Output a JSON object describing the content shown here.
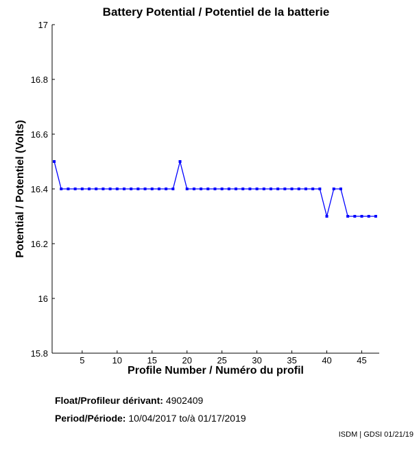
{
  "chart_data": {
    "type": "line",
    "title": "Battery Potential / Potentiel de la batterie",
    "xlabel": "Profile Number / Numéro du profil",
    "ylabel": "Potential / Potentiel (Volts)",
    "xlim": [
      0.7,
      47.5
    ],
    "ylim": [
      15.8,
      17
    ],
    "xticks": [
      5,
      10,
      15,
      20,
      25,
      30,
      35,
      40,
      45
    ],
    "yticks": [
      15.8,
      16,
      16.2,
      16.4,
      16.6,
      16.8,
      17
    ],
    "ytick_labels": [
      "15.8",
      "16",
      "16.2",
      "16.4",
      "16.6",
      "16.8",
      "17"
    ],
    "grid": false,
    "color": "#0000ff",
    "marker": "square",
    "x": [
      1,
      2,
      3,
      4,
      5,
      6,
      7,
      8,
      9,
      10,
      11,
      12,
      13,
      14,
      15,
      16,
      17,
      18,
      19,
      20,
      21,
      22,
      23,
      24,
      25,
      26,
      27,
      28,
      29,
      30,
      31,
      32,
      33,
      34,
      35,
      36,
      37,
      38,
      39,
      40,
      41,
      42,
      43,
      44,
      45,
      46,
      47
    ],
    "y": [
      16.5,
      16.4,
      16.4,
      16.4,
      16.4,
      16.4,
      16.4,
      16.4,
      16.4,
      16.4,
      16.4,
      16.4,
      16.4,
      16.4,
      16.4,
      16.4,
      16.4,
      16.4,
      16.5,
      16.4,
      16.4,
      16.4,
      16.4,
      16.4,
      16.4,
      16.4,
      16.4,
      16.4,
      16.4,
      16.4,
      16.4,
      16.4,
      16.4,
      16.4,
      16.4,
      16.4,
      16.4,
      16.4,
      16.4,
      16.3,
      16.4,
      16.4,
      16.3,
      16.3,
      16.3,
      16.3,
      16.3
    ]
  },
  "info": {
    "float_label": "Float/Profileur dérivant:",
    "float_value": "4902409",
    "period_label": "Period/Période:",
    "period_start": "10/04/2017",
    "period_sep": "to/à",
    "period_end": "01/17/2019",
    "credit": "ISDM | GDSI 01/21/19"
  }
}
